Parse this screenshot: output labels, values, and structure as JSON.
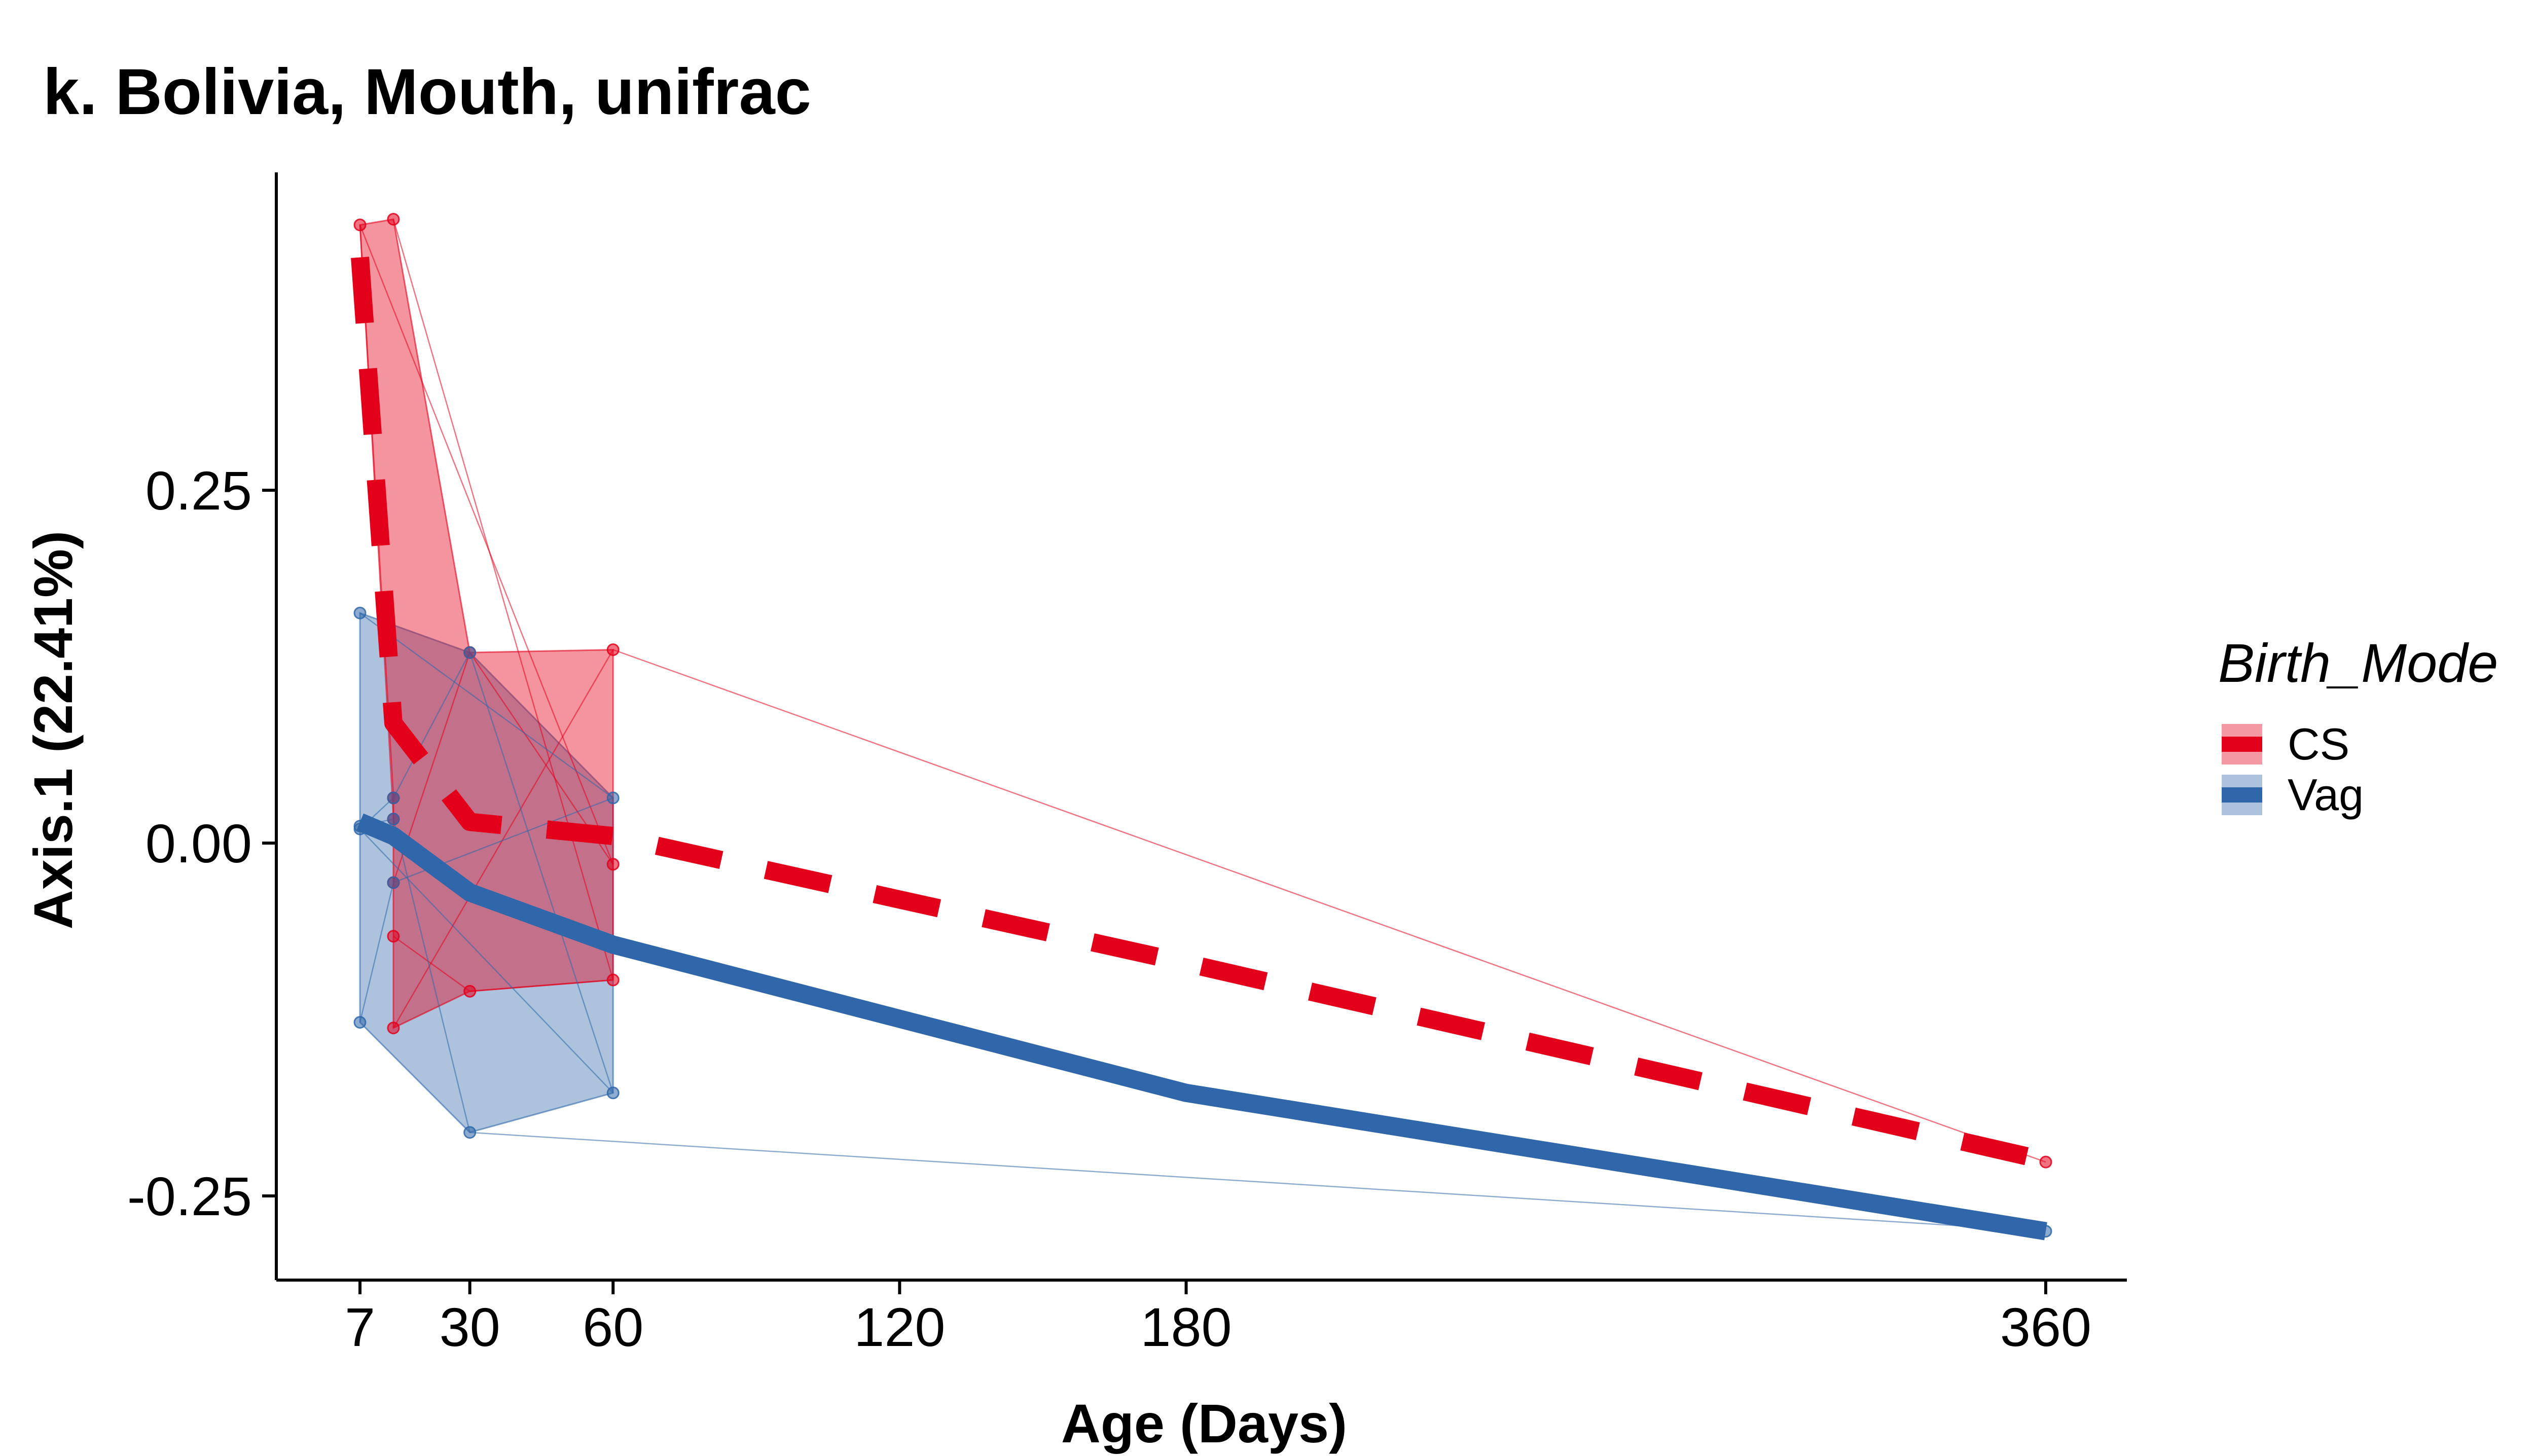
{
  "chart_data": {
    "type": "line",
    "title": "k. Bolivia, Mouth, unifrac",
    "xlabel": "Age (Days)",
    "ylabel": "Axis.1 (22.41%)",
    "xlim": [
      -7,
      375
    ],
    "ylim": [
      -0.31,
      0.475
    ],
    "x_ticks": [
      7,
      30,
      60,
      120,
      180,
      360
    ],
    "x_tick_labels": [
      "7",
      "30",
      "60",
      "120",
      "180",
      "360"
    ],
    "y_ticks": [
      -0.25,
      0,
      0.25
    ],
    "y_tick_labels": [
      "-0.25",
      "0.00",
      "0.25"
    ],
    "grid": false,
    "legend": {
      "title": "Birth_Mode",
      "position": "right",
      "entries": [
        "CS",
        "Vag"
      ]
    },
    "series": [
      {
        "name": "CS",
        "color": "#E3001B",
        "line_style": "dashed",
        "trend": [
          {
            "x": 7,
            "y": 0.415
          },
          {
            "x": 14,
            "y": 0.085
          },
          {
            "x": 30,
            "y": 0.015
          },
          {
            "x": 60,
            "y": 0.005
          },
          {
            "x": 180,
            "y": -0.085
          },
          {
            "x": 360,
            "y": -0.225
          }
        ],
        "points": [
          {
            "x": 7,
            "y": 0.438
          },
          {
            "x": 14,
            "y": 0.442
          },
          {
            "x": 14,
            "y": 0.032
          },
          {
            "x": 14,
            "y": 0.017
          },
          {
            "x": 14,
            "y": -0.028
          },
          {
            "x": 14,
            "y": -0.066
          },
          {
            "x": 14,
            "y": -0.131
          },
          {
            "x": 30,
            "y": 0.135
          },
          {
            "x": 30,
            "y": -0.105
          },
          {
            "x": 60,
            "y": 0.137
          },
          {
            "x": 60,
            "y": -0.015
          },
          {
            "x": 60,
            "y": -0.097
          },
          {
            "x": 360,
            "y": -0.226
          }
        ],
        "hull": [
          {
            "x": 7,
            "y": 0.438
          },
          {
            "x": 14,
            "y": 0.442
          },
          {
            "x": 30,
            "y": 0.135
          },
          {
            "x": 60,
            "y": 0.137
          },
          {
            "x": 60,
            "y": -0.097
          },
          {
            "x": 30,
            "y": -0.105
          },
          {
            "x": 14,
            "y": -0.131
          },
          {
            "x": 14,
            "y": 0.032
          }
        ]
      },
      {
        "name": "Vag",
        "color": "#2F67AA",
        "line_style": "solid",
        "trend": [
          {
            "x": 7,
            "y": 0.015
          },
          {
            "x": 14,
            "y": 0.005
          },
          {
            "x": 30,
            "y": -0.035
          },
          {
            "x": 60,
            "y": -0.072
          },
          {
            "x": 180,
            "y": -0.177
          },
          {
            "x": 360,
            "y": -0.275
          }
        ],
        "points": [
          {
            "x": 7,
            "y": 0.163
          },
          {
            "x": 7,
            "y": 0.01
          },
          {
            "x": 7,
            "y": 0.012
          },
          {
            "x": 7,
            "y": -0.127
          },
          {
            "x": 14,
            "y": 0.032
          },
          {
            "x": 14,
            "y": 0.017
          },
          {
            "x": 14,
            "y": -0.028
          },
          {
            "x": 30,
            "y": 0.135
          },
          {
            "x": 30,
            "y": -0.205
          },
          {
            "x": 60,
            "y": 0.032
          },
          {
            "x": 60,
            "y": -0.177
          },
          {
            "x": 360,
            "y": -0.275
          }
        ],
        "hull": [
          {
            "x": 7,
            "y": 0.163
          },
          {
            "x": 30,
            "y": 0.135
          },
          {
            "x": 60,
            "y": 0.032
          },
          {
            "x": 60,
            "y": -0.177
          },
          {
            "x": 30,
            "y": -0.205
          },
          {
            "x": 7,
            "y": -0.127
          }
        ]
      }
    ]
  }
}
